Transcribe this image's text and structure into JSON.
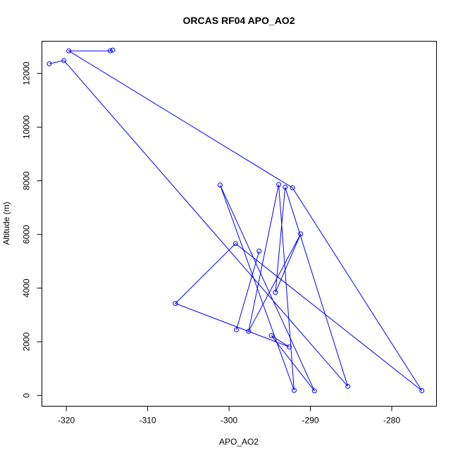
{
  "chart_data": {
    "type": "scatter",
    "title": "ORCAS RF04 APO_AO2",
    "xlabel": "APO_AO2",
    "ylabel": "Altitude (m)",
    "xlim": [
      -323.0,
      -274.5
    ],
    "ylim": [
      -400,
      13200
    ],
    "xticks": [
      -320,
      -310,
      -300,
      -290,
      -280
    ],
    "xtick_labels": [
      "-320",
      "-310",
      "-300",
      "-290",
      "-280"
    ],
    "yticks": [
      0,
      2000,
      4000,
      6000,
      8000,
      10000,
      12000
    ],
    "ytick_labels": [
      "0",
      "2000",
      "4000",
      "6000",
      "8000",
      "10000",
      "12000"
    ],
    "grid": false,
    "legend": "none",
    "connected": true,
    "marker": "open-circle",
    "color": "#0000ff",
    "series": [
      {
        "x": [
          -314.3,
          -314.6,
          -319.7,
          -292.2,
          -276.3,
          -299.2,
          -306.6,
          -292.6,
          -294.8,
          -289.5,
          -301.1,
          -292.0,
          -293.9,
          -297.6,
          -291.2,
          -294.3,
          -293.1,
          -285.4,
          -320.3,
          -322.1
        ],
        "y": [
          12870,
          12840,
          12840,
          7740,
          180,
          5660,
          3430,
          1810,
          2230,
          170,
          7840,
          190,
          7860,
          2390,
          6020,
          3840,
          7760,
          340,
          12480,
          12360
        ]
      },
      {
        "x": [
          -296.3,
          -299.1
        ],
        "y": [
          5380,
          2450
        ]
      }
    ]
  }
}
